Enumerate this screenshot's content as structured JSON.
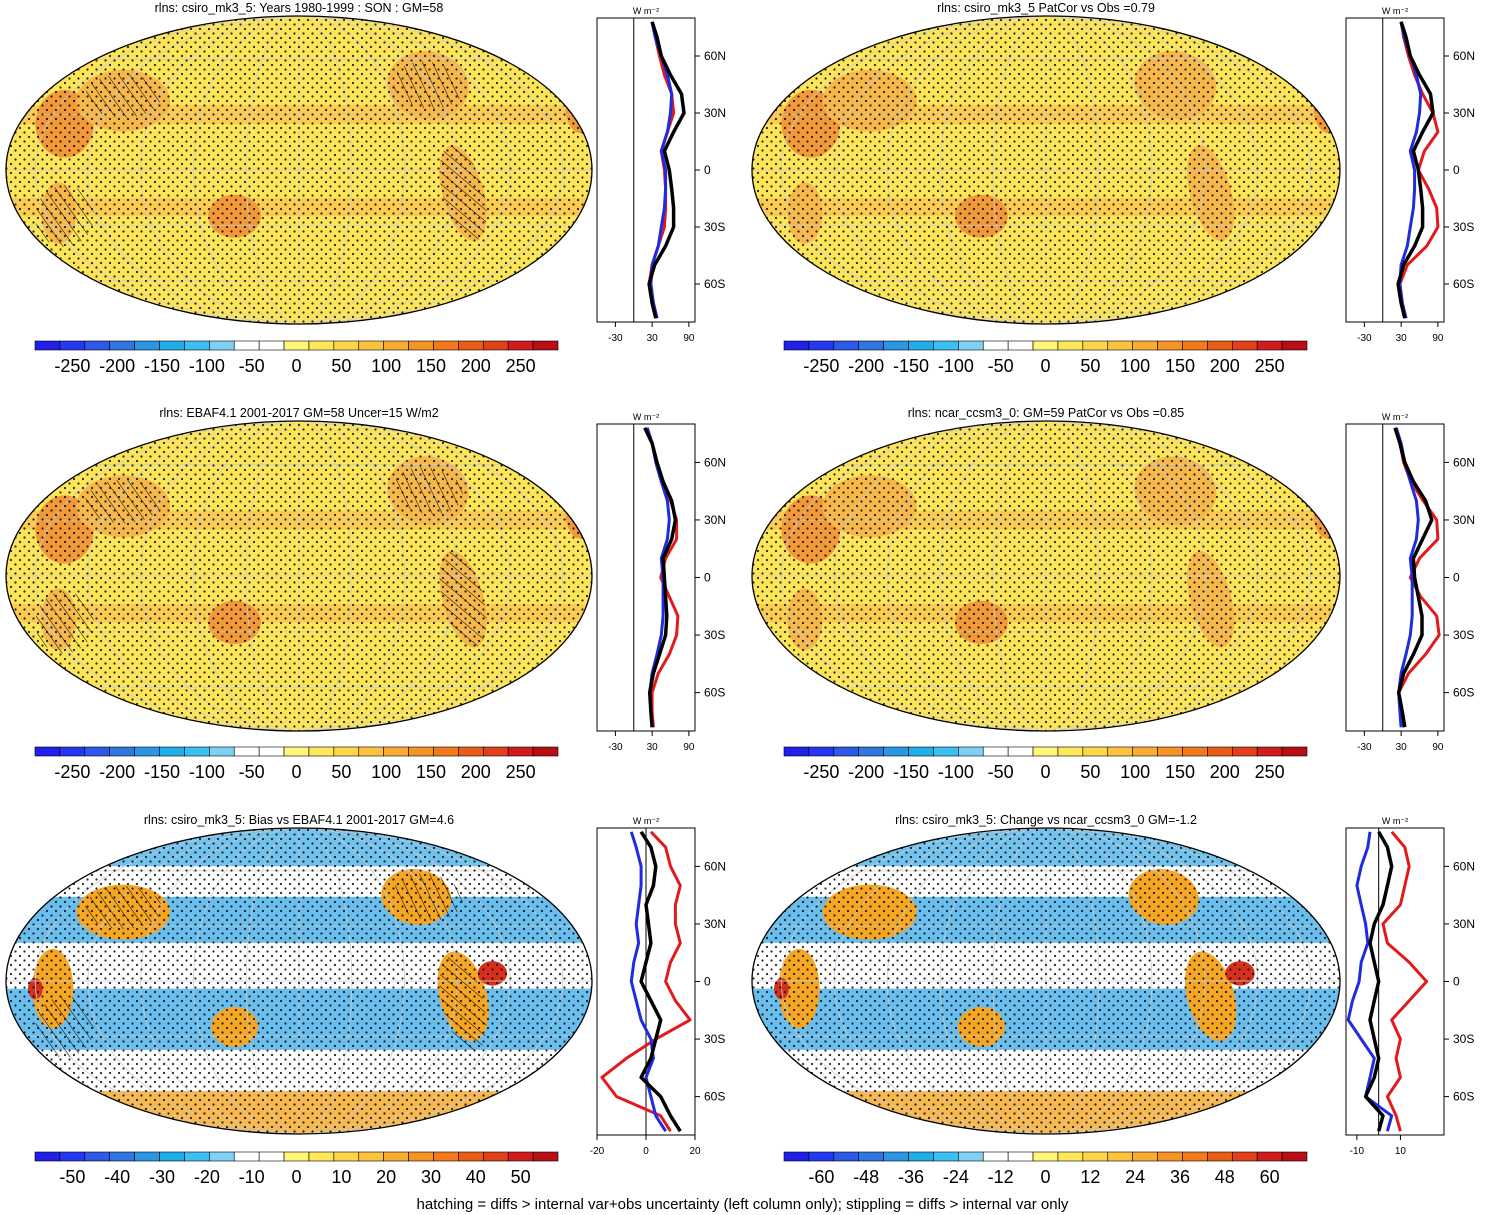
{
  "footer_note": "hatching = diffs > internal var+obs uncertainty (left column only); stippling = diffs > internal var only",
  "colors": {
    "ocean_base": "#fde55a",
    "land_warm": "#f7b84b",
    "land_hot": "#f29a3a",
    "bias_pos": "#f5a623",
    "bias_neg": "#4fb3ea",
    "bias_strong": "#d6301d",
    "zonal_model": "#000000",
    "zonal_obs": "#1f2be0",
    "zonal_diff": "#e31a1c",
    "stipple": "#000000",
    "hatch": "#000000"
  },
  "colorbar_colors": [
    "#2020e8",
    "#2438f0",
    "#2e58e8",
    "#2e76e0",
    "#2a96e4",
    "#20aeea",
    "#3cc0f2",
    "#7fd0f5",
    "#ffffff",
    "#ffffff",
    "#fff67a",
    "#ffe85a",
    "#ffd54a",
    "#fdc23e",
    "#f9ac32",
    "#f59426",
    "#f07a1c",
    "#e85e16",
    "#e0401a",
    "#d01c1c",
    "#b80f14"
  ],
  "chart_data": [
    {
      "type": "heatmap",
      "kind": "map",
      "title": "rlns: csiro_mk3_5: Years 1980-1999 : SON : GM=58",
      "colorbar": {
        "ticks": [
          "-250",
          "-200",
          "-150",
          "-100",
          "-50",
          "0",
          "50",
          "100",
          "150",
          "200",
          "250"
        ]
      },
      "hatching": true,
      "zonal": {
        "unit": "W m⁻²",
        "xticks": [
          "-30",
          "30",
          "90"
        ],
        "yticks": [
          "60N",
          "30N",
          "0",
          "30S",
          "60S"
        ],
        "xlim": [
          -60,
          100
        ],
        "ref_x": 0,
        "series": [
          {
            "lats": [
              78,
              70,
              60,
              50,
              40,
              30,
              20,
              10,
              0,
              -10,
              -20,
              -30,
              -40,
              -50,
              -60,
              -70,
              -78
            ],
            "values": [
              30,
              35,
              42,
              50,
              62,
              65,
              55,
              45,
              50,
              52,
              52,
              50,
              40,
              30,
              25,
              32,
              38
            ]
          },
          {
            "lats": [
              78,
              70,
              60,
              50,
              40,
              30,
              20,
              10,
              0,
              -10,
              -20,
              -30,
              -40,
              -50,
              -60,
              -70,
              -78
            ],
            "values": [
              30,
              35,
              45,
              55,
              62,
              60,
              55,
              45,
              52,
              52,
              50,
              45,
              40,
              30,
              28,
              32,
              38
            ]
          },
          {
            "lats": [
              78,
              70,
              60,
              50,
              40,
              30,
              20,
              10,
              0,
              -10,
              -20,
              -30,
              -40,
              -50,
              -60,
              -70,
              -78
            ],
            "values": [
              30,
              38,
              45,
              60,
              78,
              82,
              65,
              50,
              58,
              62,
              65,
              65,
              52,
              34,
              25,
              30,
              36
            ]
          }
        ]
      }
    },
    {
      "type": "heatmap",
      "kind": "map",
      "title": "rlns: csiro_mk3_5 PatCor vs Obs =0.79",
      "colorbar": {
        "ticks": [
          "-250",
          "-200",
          "-150",
          "-100",
          "-50",
          "0",
          "50",
          "100",
          "150",
          "200",
          "250"
        ]
      },
      "hatching": false,
      "zonal": {
        "unit": "W m⁻²",
        "xticks": [
          "-30",
          "30",
          "90"
        ],
        "yticks": [
          "60N",
          "30N",
          "0",
          "30S",
          "60S"
        ],
        "xlim": [
          -60,
          100
        ],
        "ref_x": 0,
        "series": [
          {
            "lats": [
              78,
              70,
              60,
              50,
              40,
              30,
              20,
              10,
              0,
              -10,
              -20,
              -30,
              -40,
              -50,
              -60,
              -70,
              -78
            ],
            "values": [
              30,
              34,
              42,
              52,
              65,
              82,
              90,
              68,
              58,
              75,
              88,
              90,
              72,
              40,
              28,
              32,
              38
            ]
          },
          {
            "lats": [
              78,
              70,
              60,
              50,
              40,
              30,
              20,
              10,
              0,
              -10,
              -20,
              -30,
              -40,
              -50,
              -60,
              -70,
              -78
            ],
            "values": [
              30,
              35,
              45,
              55,
              62,
              60,
              55,
              45,
              52,
              52,
              50,
              45,
              40,
              30,
              28,
              32,
              38
            ]
          },
          {
            "lats": [
              78,
              70,
              60,
              50,
              40,
              30,
              20,
              10,
              0,
              -10,
              -20,
              -30,
              -40,
              -50,
              -60,
              -70,
              -78
            ],
            "values": [
              30,
              38,
              45,
              60,
              78,
              82,
              65,
              50,
              58,
              62,
              65,
              65,
              52,
              34,
              25,
              30,
              36
            ]
          }
        ]
      }
    },
    {
      "type": "heatmap",
      "kind": "map",
      "title": "rlns: EBAF4.1 2001-2017 GM=58 Uncer=15 W/m2",
      "colorbar": {
        "ticks": [
          "-250",
          "-200",
          "-150",
          "-100",
          "-50",
          "0",
          "50",
          "100",
          "150",
          "200",
          "250"
        ]
      },
      "hatching": true,
      "zonal": {
        "unit": "W m⁻²",
        "xticks": [
          "-30",
          "30",
          "90"
        ],
        "yticks": [
          "60N",
          "30N",
          "0",
          "30S",
          "60S"
        ],
        "xlim": [
          -60,
          100
        ],
        "ref_x": 0,
        "series": [
          {
            "lats": [
              78,
              70,
              60,
              50,
              40,
              30,
              20,
              10,
              0,
              -10,
              -20,
              -30,
              -40,
              -50,
              -60,
              -70,
              -78
            ],
            "values": [
              22,
              30,
              38,
              48,
              60,
              70,
              70,
              52,
              44,
              58,
              72,
              70,
              58,
              40,
              30,
              30,
              32
            ]
          },
          {
            "lats": [
              78,
              70,
              60,
              50,
              40,
              30,
              20,
              10,
              0,
              -10,
              -20,
              -30,
              -40,
              -50,
              -60,
              -70,
              -78
            ],
            "values": [
              22,
              30,
              36,
              45,
              55,
              58,
              55,
              45,
              48,
              48,
              48,
              45,
              38,
              30,
              26,
              28,
              30
            ]
          },
          {
            "lats": [
              78,
              70,
              60,
              50,
              40,
              30,
              20,
              10,
              0,
              -10,
              -20,
              -30,
              -40,
              -50,
              -60,
              -70,
              -78
            ],
            "values": [
              18,
              30,
              38,
              48,
              62,
              68,
              62,
              48,
              50,
              52,
              54,
              52,
              42,
              32,
              26,
              28,
              30
            ]
          }
        ]
      }
    },
    {
      "type": "heatmap",
      "kind": "map",
      "title": "rlns: ncar_ccsm3_0: GM=59 PatCor vs Obs =0.85",
      "colorbar": {
        "ticks": [
          "-250",
          "-200",
          "-150",
          "-100",
          "-50",
          "0",
          "50",
          "100",
          "150",
          "200",
          "250"
        ]
      },
      "hatching": false,
      "zonal": {
        "unit": "W m⁻²",
        "xticks": [
          "-30",
          "30",
          "90"
        ],
        "yticks": [
          "60N",
          "30N",
          "0",
          "30S",
          "60S"
        ],
        "xlim": [
          -60,
          100
        ],
        "ref_x": 0,
        "series": [
          {
            "lats": [
              78,
              70,
              60,
              50,
              40,
              30,
              20,
              10,
              0,
              -10,
              -20,
              -30,
              -40,
              -50,
              -60,
              -70,
              -78
            ],
            "values": [
              22,
              28,
              34,
              46,
              66,
              88,
              90,
              60,
              45,
              62,
              88,
              92,
              70,
              42,
              26,
              30,
              34
            ]
          },
          {
            "lats": [
              78,
              70,
              60,
              50,
              40,
              30,
              20,
              10,
              0,
              -10,
              -20,
              -30,
              -40,
              -50,
              -60,
              -70,
              -78
            ],
            "values": [
              22,
              30,
              36,
              45,
              55,
              58,
              55,
              45,
              48,
              48,
              48,
              45,
              38,
              30,
              26,
              28,
              30
            ]
          },
          {
            "lats": [
              78,
              70,
              60,
              50,
              40,
              30,
              20,
              10,
              0,
              -10,
              -20,
              -30,
              -40,
              -50,
              -60,
              -70,
              -78
            ],
            "values": [
              20,
              28,
              36,
              50,
              70,
              80,
              65,
              50,
              52,
              58,
              64,
              64,
              50,
              34,
              26,
              32,
              36
            ]
          }
        ]
      }
    },
    {
      "type": "heatmap",
      "kind": "map",
      "title": "rlns: csiro_mk3_5: Bias vs EBAF4.1 2001-2017  GM=4.6",
      "colorbar": {
        "ticks": [
          "-50",
          "-40",
          "-30",
          "-20",
          "-10",
          "0",
          "10",
          "20",
          "30",
          "40",
          "50"
        ]
      },
      "hatching": true,
      "zonal": {
        "unit": "W m⁻²",
        "xticks": [
          "-20",
          "0",
          "20"
        ],
        "yticks": [
          "60N",
          "30N",
          "0",
          "30S",
          "60S"
        ],
        "xlim": [
          -20,
          20
        ],
        "ref_x": 0,
        "series": [
          {
            "lats": [
              78,
              70,
              60,
              50,
              40,
              30,
              20,
              10,
              0,
              -10,
              -20,
              -30,
              -40,
              -50,
              -60,
              -70,
              -78
            ],
            "values": [
              2,
              8,
              10,
              14,
              12,
              12,
              14,
              10,
              8,
              12,
              18,
              4,
              -8,
              -18,
              -12,
              6,
              10
            ]
          },
          {
            "lats": [
              78,
              70,
              60,
              50,
              40,
              30,
              20,
              10,
              0,
              -10,
              -20,
              -30,
              -40,
              -50,
              -60,
              -70,
              -78
            ],
            "values": [
              -6,
              -4,
              -2,
              -2,
              -3,
              -4,
              -3,
              -5,
              -6,
              -4,
              -2,
              2,
              3,
              0,
              2,
              4,
              8
            ]
          },
          {
            "lats": [
              78,
              70,
              60,
              50,
              40,
              30,
              20,
              10,
              0,
              -10,
              -20,
              -30,
              -40,
              -50,
              -60,
              -70,
              -78
            ],
            "values": [
              -2,
              2,
              4,
              3,
              0,
              1,
              2,
              0,
              -2,
              2,
              6,
              4,
              2,
              -2,
              6,
              10,
              14
            ]
          }
        ]
      }
    },
    {
      "type": "heatmap",
      "kind": "map",
      "title": "rlns: csiro_mk3_5: Change vs ncar_ccsm3_0 GM=-1.2",
      "colorbar": {
        "ticks": [
          "-60",
          "-48",
          "-36",
          "-24",
          "-12",
          "0",
          "12",
          "24",
          "36",
          "48",
          "60"
        ]
      },
      "hatching": false,
      "zonal": {
        "unit": "W m⁻²",
        "xticks": [
          "-10",
          "10"
        ],
        "yticks": [
          "60N",
          "30N",
          "0",
          "30S",
          "60S"
        ],
        "xlim": [
          -15,
          30
        ],
        "ref_x": 0,
        "series": [
          {
            "lats": [
              78,
              70,
              60,
              50,
              40,
              30,
              20,
              10,
              0,
              -10,
              -20,
              -30,
              -40,
              -50,
              -60,
              -70,
              -78
            ],
            "values": [
              6,
              12,
              14,
              12,
              10,
              2,
              4,
              14,
              22,
              14,
              6,
              10,
              8,
              10,
              4,
              8,
              10
            ]
          },
          {
            "lats": [
              78,
              70,
              60,
              50,
              40,
              30,
              20,
              10,
              0,
              -10,
              -20,
              -30,
              -40,
              -50,
              -60,
              -70,
              -78
            ],
            "values": [
              -4,
              -5,
              -8,
              -10,
              -8,
              -6,
              -5,
              -8,
              -9,
              -12,
              -14,
              -8,
              -2,
              -4,
              -6,
              6,
              4
            ]
          },
          {
            "lats": [
              78,
              70,
              60,
              50,
              40,
              30,
              20,
              10,
              0,
              -10,
              -20,
              -30,
              -40,
              -50,
              -60,
              -70,
              -78
            ],
            "values": [
              0,
              4,
              6,
              4,
              2,
              -2,
              -4,
              -2,
              0,
              -2,
              -4,
              -2,
              0,
              -2,
              -6,
              2,
              0
            ]
          }
        ]
      }
    }
  ]
}
